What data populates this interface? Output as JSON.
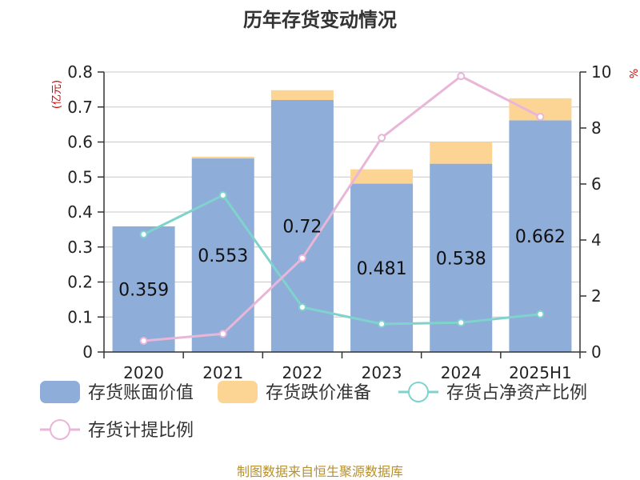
{
  "chart_data": {
    "type": "bar",
    "title": "历年存货变动情况",
    "categories": [
      "2020",
      "2021",
      "2022",
      "2023",
      "2024",
      "2025H1"
    ],
    "y_left": {
      "unit": "(亿元)",
      "ylim": [
        0,
        0.8
      ],
      "ticks": [
        "0",
        "0.1",
        "0.2",
        "0.3",
        "0.4",
        "0.5",
        "0.6",
        "0.7",
        "0.8"
      ]
    },
    "y_right": {
      "unit": "%",
      "ylim": [
        0,
        10
      ],
      "ticks": [
        "0",
        "2",
        "4",
        "6",
        "8",
        "10"
      ]
    },
    "series": [
      {
        "name": "存货账面价值",
        "kind": "bar",
        "axis": "left",
        "color": "#8eadd8",
        "values": [
          0.359,
          0.553,
          0.72,
          0.481,
          0.538,
          0.662
        ],
        "labels": [
          "0.359",
          "0.553",
          "0.72",
          "0.481",
          "0.538",
          "0.662"
        ]
      },
      {
        "name": "存货跌价准备",
        "kind": "bar-stacked",
        "axis": "left",
        "color": "#fcd595",
        "values": [
          0.0,
          0.005,
          0.028,
          0.041,
          0.062,
          0.063
        ]
      },
      {
        "name": "存货占净资产比例",
        "kind": "line",
        "axis": "right",
        "color": "#7fd3cd",
        "values": [
          4.2,
          5.6,
          1.6,
          1.0,
          1.05,
          1.35
        ]
      },
      {
        "name": "存货计提比例",
        "kind": "line",
        "axis": "right",
        "color": "#e8b6d8",
        "values": [
          0.4,
          0.65,
          3.35,
          7.65,
          9.85,
          8.4
        ]
      }
    ],
    "grid": true,
    "legend_position": "bottom"
  },
  "source": "制图数据来自恒生聚源数据库"
}
